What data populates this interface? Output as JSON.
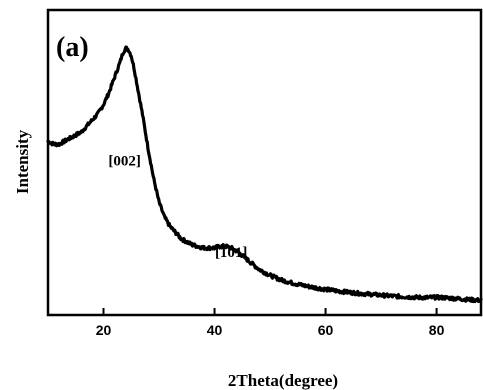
{
  "chart_data": {
    "type": "line",
    "panel_label": "(a)",
    "xlabel": "2Theta(degree)",
    "ylabel": "Intensity",
    "xlim": [
      10,
      88
    ],
    "ylim": [
      0,
      1
    ],
    "x_ticks": [
      20,
      40,
      60,
      80
    ],
    "y_ticks_labeled": false,
    "grid": false,
    "annotations": [
      {
        "text": "[002]",
        "x": 23.8,
        "y": 0.49
      },
      {
        "text": "[101]",
        "x": 43.0,
        "y": 0.19
      }
    ],
    "series": [
      {
        "x": [
          10,
          11,
          12,
          13,
          14,
          15,
          16,
          17,
          18,
          19,
          20,
          21,
          22,
          23,
          23.5,
          24,
          24.5,
          25,
          25.5,
          26,
          27,
          28,
          29,
          30,
          31,
          32,
          33,
          34,
          35,
          36,
          37,
          38,
          39,
          40,
          41,
          42,
          43,
          44,
          45,
          46,
          47,
          48,
          50,
          52,
          54,
          56,
          58,
          60,
          62,
          64,
          66,
          68,
          70,
          72,
          74,
          76,
          78,
          80,
          82,
          84,
          86,
          88
        ],
        "y": [
          0.57,
          0.56,
          0.56,
          0.57,
          0.58,
          0.59,
          0.6,
          0.62,
          0.64,
          0.66,
          0.69,
          0.73,
          0.78,
          0.83,
          0.86,
          0.875,
          0.87,
          0.85,
          0.81,
          0.76,
          0.66,
          0.55,
          0.45,
          0.37,
          0.32,
          0.29,
          0.27,
          0.25,
          0.24,
          0.23,
          0.225,
          0.22,
          0.22,
          0.22,
          0.225,
          0.225,
          0.22,
          0.21,
          0.195,
          0.18,
          0.165,
          0.15,
          0.13,
          0.115,
          0.105,
          0.097,
          0.09,
          0.084,
          0.079,
          0.075,
          0.071,
          0.068,
          0.065,
          0.062,
          0.06,
          0.058,
          0.057,
          0.058,
          0.056,
          0.053,
          0.05,
          0.048
        ]
      }
    ]
  }
}
